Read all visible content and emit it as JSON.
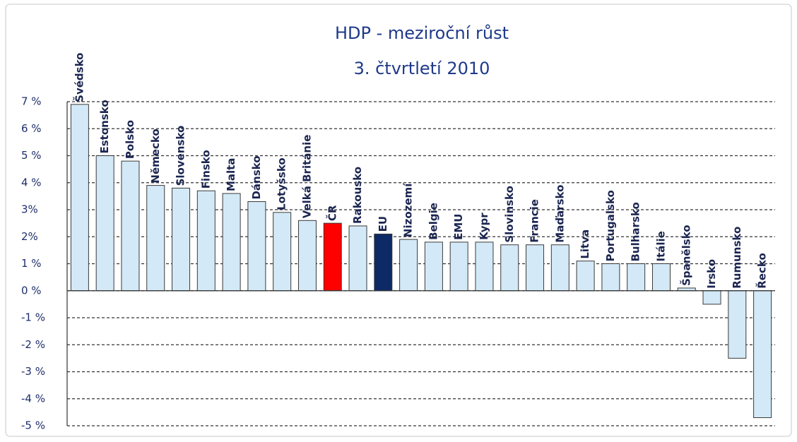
{
  "chart_data": {
    "type": "bar",
    "title": "HDP - meziroční růst",
    "subtitle": "3. čtvrtletí 2010",
    "categories": [
      "Švédsko",
      "Estonsko",
      "Polsko",
      "Německo",
      "Slovensko",
      "Finsko",
      "Malta",
      "Dánsko",
      "Lotyšsko",
      "Velká Británie",
      "ČR",
      "Rakousko",
      "EU",
      "Nizozemí",
      "Belgie",
      "EMU",
      "Kypr",
      "Slovinsko",
      "Francie",
      "Maďarsko",
      "Litva",
      "Portugalsko",
      "Bulharsko",
      "Itálie",
      "Španělsko",
      "Irsko",
      "Rumunsko",
      "Řecko"
    ],
    "values": [
      6.9,
      5.0,
      4.8,
      3.9,
      3.8,
      3.7,
      3.6,
      3.3,
      2.9,
      2.6,
      2.5,
      2.4,
      2.1,
      1.9,
      1.8,
      1.8,
      1.8,
      1.7,
      1.7,
      1.7,
      1.1,
      1.0,
      1.0,
      1.0,
      0.1,
      -0.5,
      -2.5,
      -4.7
    ],
    "colors": [
      "#d3e9f7",
      "#d3e9f7",
      "#d3e9f7",
      "#d3e9f7",
      "#d3e9f7",
      "#d3e9f7",
      "#d3e9f7",
      "#d3e9f7",
      "#d3e9f7",
      "#d3e9f7",
      "#ff0000",
      "#d3e9f7",
      "#0d2a66",
      "#d3e9f7",
      "#d3e9f7",
      "#d3e9f7",
      "#d3e9f7",
      "#d3e9f7",
      "#d3e9f7",
      "#d3e9f7",
      "#d3e9f7",
      "#d3e9f7",
      "#d3e9f7",
      "#d3e9f7",
      "#d3e9f7",
      "#d3e9f7",
      "#d3e9f7",
      "#d3e9f7"
    ],
    "ylim": [
      -5,
      7
    ],
    "yticks": [
      {
        "value": 7,
        "label": "7 %"
      },
      {
        "value": 6,
        "label": "6 %"
      },
      {
        "value": 5,
        "label": "5 %"
      },
      {
        "value": 4,
        "label": "4 %"
      },
      {
        "value": 3,
        "label": "3%"
      },
      {
        "value": 2,
        "label": "2%"
      },
      {
        "value": 1,
        "label": "1 %"
      },
      {
        "value": 0,
        "label": "0 %"
      },
      {
        "value": -1,
        "label": "-1 %"
      },
      {
        "value": -2,
        "label": "-2 %"
      },
      {
        "value": -3,
        "label": "-3 %"
      },
      {
        "value": -4,
        "label": "-4 %"
      },
      {
        "value": -5,
        "label": "-5 %"
      }
    ],
    "grid": true
  }
}
